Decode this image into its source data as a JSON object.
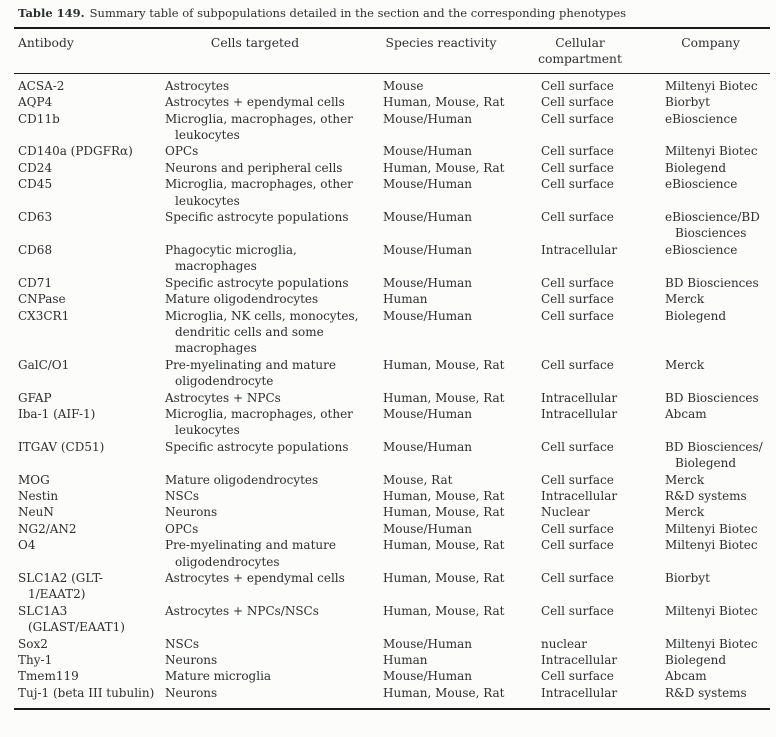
{
  "caption": {
    "label": "Table 149.",
    "text": "Summary table of subpopulations detailed in the section and the corresponding phenotypes"
  },
  "table": {
    "columns": [
      "Antibody",
      "Cells targeted",
      "Species reactivity",
      "Cellular compartment",
      "Company"
    ],
    "rows": [
      {
        "antibody": "ACSA-2",
        "cells": "Astrocytes",
        "species": "Mouse",
        "compartment": "Cell surface",
        "company": "Miltenyi Biotec"
      },
      {
        "antibody": "AQP4",
        "cells": "Astrocytes + ependymal cells",
        "species": "Human, Mouse, Rat",
        "compartment": "Cell surface",
        "company": "Biorbyt"
      },
      {
        "antibody": "CD11b",
        "cells": "Microglia, macrophages, other leukocytes",
        "species": "Mouse/Human",
        "compartment": "Cell surface",
        "company": "eBioscience"
      },
      {
        "antibody": "CD140a (PDGFRα)",
        "cells": "OPCs",
        "species": "Mouse/Human",
        "compartment": "Cell surface",
        "company": "Miltenyi Biotec"
      },
      {
        "antibody": "CD24",
        "cells": "Neurons and peripheral cells",
        "species": "Human, Mouse, Rat",
        "compartment": "Cell surface",
        "company": "Biolegend"
      },
      {
        "antibody": "CD45",
        "cells": "Microglia, macrophages, other leukocytes",
        "species": "Mouse/Human",
        "compartment": "Cell surface",
        "company": "eBioscience"
      },
      {
        "antibody": "CD63",
        "cells": "Specific astrocyte populations",
        "species": "Mouse/Human",
        "compartment": "Cell surface",
        "company": "eBioscience/BD Biosciences"
      },
      {
        "antibody": "CD68",
        "cells": "Phagocytic microglia, macrophages",
        "species": "Mouse/Human",
        "compartment": "Intracellular",
        "company": "eBioscience"
      },
      {
        "antibody": "CD71",
        "cells": "Specific astrocyte populations",
        "species": "Mouse/Human",
        "compartment": "Cell surface",
        "company": "BD Biosciences"
      },
      {
        "antibody": "CNPase",
        "cells": "Mature oligodendrocytes",
        "species": "Human",
        "compartment": "Cell surface",
        "company": "Merck"
      },
      {
        "antibody": "CX3CR1",
        "cells": "Microglia, NK cells, monocytes, dendritic cells and some macrophages",
        "species": "Mouse/Human",
        "compartment": "Cell surface",
        "company": "Biolegend"
      },
      {
        "antibody": "GalC/O1",
        "cells": "Pre-myelinating and mature oligodendrocyte",
        "species": "Human, Mouse, Rat",
        "compartment": "Cell surface",
        "company": "Merck"
      },
      {
        "antibody": "GFAP",
        "cells": "Astrocytes + NPCs",
        "species": "Human, Mouse, Rat",
        "compartment": "Intracellular",
        "company": "BD Biosciences"
      },
      {
        "antibody": "Iba-1 (AIF-1)",
        "cells": "Microglia, macrophages, other leukocytes",
        "species": "Mouse/Human",
        "compartment": "Intracellular",
        "company": "Abcam"
      },
      {
        "antibody": "ITGAV (CD51)",
        "cells": "Specific astrocyte populations",
        "species": "Mouse/Human",
        "compartment": "Cell surface",
        "company": "BD Biosciences/ Biolegend"
      },
      {
        "antibody": "MOG",
        "cells": "Mature oligodendrocytes",
        "species": "Mouse, Rat",
        "compartment": "Cell surface",
        "company": "Merck"
      },
      {
        "antibody": "Nestin",
        "cells": "NSCs",
        "species": "Human, Mouse, Rat",
        "compartment": "Intracellular",
        "company": "R&D systems"
      },
      {
        "antibody": "NeuN",
        "cells": "Neurons",
        "species": "Human, Mouse, Rat",
        "compartment": "Nuclear",
        "company": "Merck"
      },
      {
        "antibody": "NG2/AN2",
        "cells": "OPCs",
        "species": "Mouse/Human",
        "compartment": "Cell surface",
        "company": "Miltenyi Biotec"
      },
      {
        "antibody": "O4",
        "cells": "Pre-myelinating and mature oligodendrocytes",
        "species": "Human, Mouse, Rat",
        "compartment": "Cell surface",
        "company": "Miltenyi Biotec"
      },
      {
        "antibody": "SLC1A2 (GLT-1/EAAT2)",
        "cells": "Astrocytes + ependymal cells",
        "species": "Human, Mouse, Rat",
        "compartment": "Cell surface",
        "company": "Biorbyt"
      },
      {
        "antibody": "SLC1A3 (GLAST/EAAT1)",
        "cells": "Astrocytes + NPCs/NSCs",
        "species": "Human, Mouse, Rat",
        "compartment": "Cell surface",
        "company": "Miltenyi Biotec"
      },
      {
        "antibody": "Sox2",
        "cells": "NSCs",
        "species": "Mouse/Human",
        "compartment": "nuclear",
        "company": "Miltenyi Biotec"
      },
      {
        "antibody": "Thy-1",
        "cells": "Neurons",
        "species": "Human",
        "compartment": "Intracellular",
        "company": "Biolegend"
      },
      {
        "antibody": "Tmem119",
        "cells": "Mature microglia",
        "species": "Mouse/Human",
        "compartment": "Cell surface",
        "company": "Abcam"
      },
      {
        "antibody": "Tuj-1 (beta III tubulin)",
        "cells": "Neurons",
        "species": "Human, Mouse, Rat",
        "compartment": "Intracellular",
        "company": "R&D systems"
      }
    ]
  }
}
